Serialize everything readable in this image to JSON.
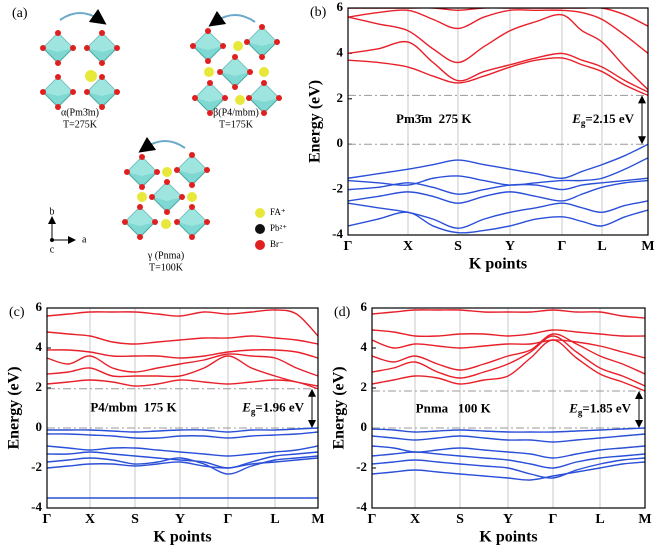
{
  "illustration": {
    "panel_label": "(a)",
    "phases": [
      {
        "name": "α(Pm3̄m)",
        "temperature": "T=275K"
      },
      {
        "name": "β(P4/mbm)",
        "temperature": "T=175K"
      },
      {
        "name": "γ (Pnma)",
        "temperature": "T=100K"
      }
    ],
    "legend": [
      "FA⁺",
      "Pb²⁺",
      "Br⁻"
    ],
    "axes": [
      "b",
      "a",
      "c"
    ]
  },
  "chart_data": [
    {
      "type": "line",
      "panel_label": "(b)",
      "y_label": "Energy (eV)",
      "x_label": "K points",
      "phase_label": "Pm3̄m  275 K",
      "gap_label": {
        "symbol": "E",
        "subscript": "g",
        "value_text": "=2.15 eV"
      },
      "gap": [
        0,
        2.15
      ],
      "xlim": [
        0,
        3.0
      ],
      "ylim": [
        -4,
        6
      ],
      "yticks": [
        -4,
        -2,
        0,
        2,
        4,
        6
      ],
      "xticks": [
        {
          "value": 0,
          "label": "Γ"
        },
        {
          "value": 0.6,
          "label": "X"
        },
        {
          "value": 1.1,
          "label": "S"
        },
        {
          "value": 1.62,
          "label": "Y"
        },
        {
          "value": 2.14,
          "label": "Γ"
        },
        {
          "value": 2.54,
          "label": "L"
        },
        {
          "value": 3.0,
          "label": "M"
        }
      ],
      "x": [
        0,
        0.3,
        0.6,
        0.85,
        1.1,
        1.36,
        1.62,
        1.88,
        2.14,
        2.34,
        2.54,
        2.77,
        3.0
      ],
      "series": [
        {
          "color": "#e8202a",
          "values": [
            3.7,
            3.6,
            3.4,
            3.0,
            2.7,
            3.0,
            3.4,
            3.7,
            3.8,
            3.5,
            3.2,
            2.6,
            2.15
          ]
        },
        {
          "color": "#e8202a",
          "values": [
            4.0,
            4.2,
            4.5,
            3.6,
            2.8,
            3.2,
            3.5,
            3.8,
            4.0,
            3.7,
            3.4,
            2.8,
            2.3
          ]
        },
        {
          "color": "#e8202a",
          "values": [
            5.6,
            5.3,
            5.0,
            4.2,
            3.6,
            4.3,
            5.0,
            5.4,
            5.7,
            5.0,
            4.5,
            3.4,
            2.4
          ]
        },
        {
          "color": "#e8202a",
          "values": [
            5.6,
            5.8,
            5.9,
            5.5,
            5.1,
            5.6,
            5.9,
            5.9,
            5.9,
            5.8,
            5.5,
            4.8,
            4.0
          ]
        },
        {
          "color": "#e8202a",
          "values": [
            6.0,
            6.0,
            6.0,
            6.0,
            5.9,
            6.0,
            6.0,
            6.0,
            6.0,
            6.0,
            6.0,
            5.7,
            5.2
          ]
        },
        {
          "color": "#2a4fd8",
          "values": [
            -1.5,
            -1.3,
            -1.1,
            -0.9,
            -0.7,
            -0.9,
            -1.1,
            -1.3,
            -1.5,
            -1.2,
            -0.9,
            -0.5,
            0
          ]
        },
        {
          "color": "#2a4fd8",
          "values": [
            -1.6,
            -1.7,
            -1.8,
            -1.5,
            -1.4,
            -1.6,
            -1.8,
            -1.7,
            -1.6,
            -1.6,
            -1.5,
            -1.1,
            -0.6
          ]
        },
        {
          "color": "#2a4fd8",
          "values": [
            -2.0,
            -1.9,
            -1.7,
            -1.9,
            -2.2,
            -2.0,
            -1.8,
            -1.8,
            -2.0,
            -1.8,
            -1.7,
            -1.6,
            -1.5
          ]
        },
        {
          "color": "#2a4fd8",
          "values": [
            -2.5,
            -2.3,
            -2.1,
            -2.3,
            -2.6,
            -2.3,
            -2.1,
            -2.3,
            -2.5,
            -2.2,
            -1.9,
            -1.7,
            -1.6
          ]
        },
        {
          "color": "#2a4fd8",
          "values": [
            -2.6,
            -2.8,
            -3.0,
            -3.3,
            -3.7,
            -3.3,
            -3.0,
            -2.8,
            -2.6,
            -2.8,
            -3.0,
            -2.7,
            -2.5
          ]
        },
        {
          "color": "#2a4fd8",
          "values": [
            -3.6,
            -3.3,
            -3.0,
            -3.6,
            -3.9,
            -3.8,
            -3.6,
            -3.3,
            -3.2,
            -3.4,
            -3.6,
            -3.2,
            -2.9
          ]
        }
      ]
    },
    {
      "type": "line",
      "panel_label": "(c)",
      "y_label": "Energy (eV)",
      "x_label": "K points",
      "phase_label": "P4/mbm  175 K",
      "gap_label": {
        "symbol": "E",
        "subscript": "g",
        "value_text": "=1.96 eV"
      },
      "gap": [
        0,
        1.96
      ],
      "xlim": [
        0,
        2.71
      ],
      "ylim": [
        -4,
        6
      ],
      "yticks": [
        -4,
        -2,
        0,
        2,
        4,
        6
      ],
      "xticks": [
        {
          "value": 0,
          "label": "Γ"
        },
        {
          "value": 0.43,
          "label": "X"
        },
        {
          "value": 0.88,
          "label": "S"
        },
        {
          "value": 1.33,
          "label": "Y"
        },
        {
          "value": 1.81,
          "label": "Γ"
        },
        {
          "value": 2.28,
          "label": "L"
        },
        {
          "value": 2.71,
          "label": "M"
        }
      ],
      "x": [
        0,
        0.215,
        0.43,
        0.655,
        0.88,
        1.105,
        1.33,
        1.57,
        1.81,
        2.045,
        2.28,
        2.495,
        2.71
      ],
      "series": [
        {
          "color": "#e8202a",
          "values": [
            2.2,
            2.3,
            2.4,
            2.3,
            2.1,
            2.2,
            2.4,
            2.3,
            2.2,
            2.3,
            2.4,
            2.3,
            1.96
          ]
        },
        {
          "color": "#e8202a",
          "values": [
            2.7,
            2.8,
            3.0,
            2.6,
            2.6,
            2.6,
            2.6,
            3.0,
            3.6,
            3.0,
            2.6,
            2.3,
            2.1
          ]
        },
        {
          "color": "#e8202a",
          "values": [
            3.5,
            3.2,
            3.6,
            3.0,
            2.8,
            3.0,
            3.2,
            3.4,
            3.7,
            3.6,
            3.5,
            3.0,
            2.6
          ]
        },
        {
          "color": "#e8202a",
          "values": [
            3.9,
            3.9,
            3.8,
            3.6,
            3.6,
            3.6,
            3.5,
            3.6,
            3.8,
            3.9,
            3.9,
            3.8,
            3.5
          ]
        },
        {
          "color": "#e8202a",
          "values": [
            4.8,
            4.7,
            4.6,
            4.3,
            4.2,
            4.3,
            4.4,
            4.5,
            4.5,
            4.6,
            4.5,
            4.4,
            4.2
          ]
        },
        {
          "color": "#e8202a",
          "values": [
            5.6,
            5.7,
            5.8,
            5.8,
            5.8,
            5.7,
            5.6,
            5.8,
            5.7,
            5.8,
            5.9,
            5.7,
            4.6
          ]
        },
        {
          "color": "#2a4fd8",
          "values": [
            -0.1,
            -0.1,
            -0.1,
            -0.15,
            -0.2,
            -0.15,
            -0.1,
            -0.1,
            -0.2,
            -0.1,
            -0.1,
            -0.05,
            0
          ]
        },
        {
          "color": "#2a4fd8",
          "values": [
            -0.3,
            -0.3,
            -0.35,
            -0.4,
            -0.5,
            -0.5,
            -0.4,
            -0.4,
            -0.5,
            -0.4,
            -0.35,
            -0.3,
            -0.2
          ]
        },
        {
          "color": "#2a4fd8",
          "values": [
            -0.9,
            -1.0,
            -1.1,
            -1.0,
            -1.0,
            -1.1,
            -1.2,
            -1.3,
            -1.4,
            -1.3,
            -1.2,
            -1.1,
            -0.9
          ]
        },
        {
          "color": "#2a4fd8",
          "values": [
            -1.3,
            -1.3,
            -1.2,
            -1.3,
            -1.4,
            -1.5,
            -1.6,
            -1.7,
            -2.0,
            -1.7,
            -1.4,
            -1.3,
            -1.2
          ]
        },
        {
          "color": "#2a4fd8",
          "values": [
            -1.7,
            -1.6,
            -1.5,
            -1.6,
            -1.8,
            -1.7,
            -1.5,
            -1.8,
            -2.3,
            -1.9,
            -1.6,
            -1.5,
            -1.4
          ]
        },
        {
          "color": "#2a4fd8",
          "values": [
            -2.0,
            -1.9,
            -1.8,
            -1.8,
            -1.9,
            -1.8,
            -1.7,
            -1.9,
            -2.0,
            -1.8,
            -1.7,
            -1.6,
            -1.5
          ]
        },
        {
          "color": "#2a4fd8",
          "values": [
            -3.5,
            -3.5,
            -3.5,
            -3.5,
            -3.5,
            -3.5,
            -3.5,
            -3.5,
            -3.5,
            -3.5,
            -3.5,
            -3.5,
            -3.5
          ]
        }
      ]
    },
    {
      "type": "line",
      "panel_label": "(d)",
      "y_label": "Energy (eV)",
      "x_label": "K points",
      "phase_label": "Pnma   100 K",
      "gap_label": {
        "symbol": "E",
        "subscript": "g",
        "value_text": "=1.85 eV"
      },
      "gap": [
        0,
        1.85
      ],
      "xlim": [
        0,
        2.73
      ],
      "ylim": [
        -4,
        6
      ],
      "yticks": [
        -4,
        -2,
        0,
        2,
        4,
        6
      ],
      "xticks": [
        {
          "value": 0,
          "label": "Γ"
        },
        {
          "value": 0.43,
          "label": "X"
        },
        {
          "value": 0.88,
          "label": "S"
        },
        {
          "value": 1.36,
          "label": "Y"
        },
        {
          "value": 1.81,
          "label": "Γ"
        },
        {
          "value": 2.28,
          "label": "L"
        },
        {
          "value": 2.73,
          "label": "M"
        }
      ],
      "x": [
        0,
        0.215,
        0.43,
        0.655,
        0.88,
        1.12,
        1.36,
        1.585,
        1.81,
        2.045,
        2.28,
        2.505,
        2.73
      ],
      "series": [
        {
          "color": "#e8202a",
          "values": [
            2.2,
            2.4,
            2.6,
            2.5,
            2.2,
            2.4,
            2.6,
            3.5,
            4.4,
            3.5,
            2.7,
            2.3,
            1.85
          ]
        },
        {
          "color": "#e8202a",
          "values": [
            2.8,
            3.0,
            3.3,
            2.8,
            2.5,
            2.8,
            3.2,
            3.8,
            4.6,
            3.8,
            3.0,
            2.6,
            2.1
          ]
        },
        {
          "color": "#e8202a",
          "values": [
            3.6,
            3.3,
            3.6,
            3.2,
            2.9,
            3.2,
            3.6,
            3.9,
            4.7,
            4.2,
            3.6,
            3.2,
            2.7
          ]
        },
        {
          "color": "#e8202a",
          "values": [
            4.4,
            4.0,
            4.2,
            4.1,
            4.0,
            4.1,
            4.2,
            4.2,
            4.4,
            4.3,
            4.1,
            3.8,
            3.5
          ]
        },
        {
          "color": "#e8202a",
          "values": [
            4.9,
            4.8,
            4.6,
            4.6,
            4.7,
            4.7,
            4.6,
            4.7,
            4.9,
            4.8,
            4.7,
            4.6,
            4.6
          ]
        },
        {
          "color": "#e8202a",
          "values": [
            5.7,
            5.8,
            5.9,
            5.9,
            5.9,
            5.8,
            5.8,
            5.8,
            5.9,
            5.8,
            5.8,
            5.6,
            5.5
          ]
        },
        {
          "color": "#2a4fd8",
          "values": [
            -0.05,
            -0.1,
            -0.2,
            -0.15,
            -0.1,
            -0.15,
            -0.2,
            -0.2,
            -0.2,
            -0.15,
            -0.1,
            -0.05,
            0
          ]
        },
        {
          "color": "#2a4fd8",
          "values": [
            -0.4,
            -0.5,
            -0.6,
            -0.5,
            -0.4,
            -0.5,
            -0.6,
            -0.6,
            -0.7,
            -0.6,
            -0.5,
            -0.4,
            -0.3
          ]
        },
        {
          "color": "#2a4fd8",
          "values": [
            -0.9,
            -1.0,
            -1.2,
            -1.1,
            -1.0,
            -1.1,
            -1.2,
            -1.3,
            -1.5,
            -1.3,
            -1.1,
            -1.0,
            -0.9
          ]
        },
        {
          "color": "#2a4fd8",
          "values": [
            -1.4,
            -1.3,
            -1.2,
            -1.3,
            -1.4,
            -1.5,
            -1.6,
            -1.8,
            -2.0,
            -1.7,
            -1.5,
            -1.4,
            -1.3
          ]
        },
        {
          "color": "#2a4fd8",
          "values": [
            -1.8,
            -1.7,
            -1.6,
            -1.7,
            -1.8,
            -1.9,
            -2.0,
            -2.3,
            -2.5,
            -2.1,
            -1.8,
            -1.6,
            -1.5
          ]
        },
        {
          "color": "#2a4fd8",
          "values": [
            -2.3,
            -2.2,
            -2.1,
            -2.2,
            -2.3,
            -2.4,
            -2.5,
            -2.6,
            -2.4,
            -2.2,
            -2.0,
            -1.8,
            -1.7
          ]
        }
      ]
    }
  ]
}
